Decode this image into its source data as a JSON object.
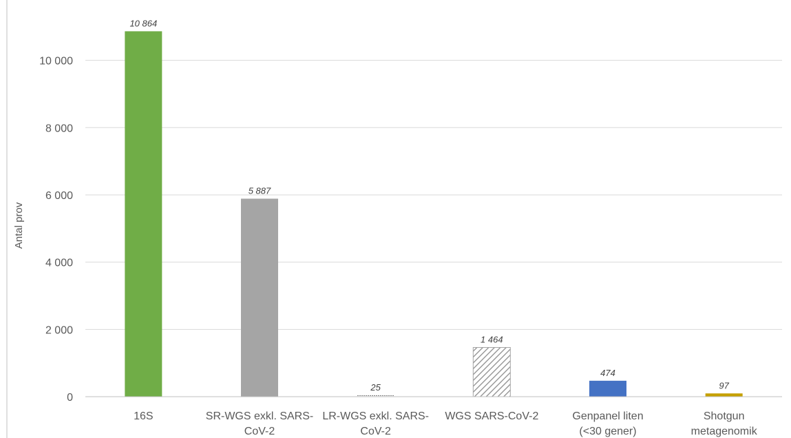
{
  "chart_data": {
    "type": "bar",
    "categories": [
      [
        "16S"
      ],
      [
        "SR-WGS exkl. SARS-",
        "CoV-2"
      ],
      [
        "LR-WGS exkl. SARS-",
        "CoV-2"
      ],
      [
        "WGS SARS-CoV-2"
      ],
      [
        "Genpanel liten",
        "(<30 gener)"
      ],
      [
        "Shotgun",
        "metagenomik"
      ]
    ],
    "values": [
      10864,
      5887,
      25,
      1464,
      474,
      97
    ],
    "data_labels": [
      "10 864",
      "5 887",
      "25",
      "1 464",
      "474",
      "97"
    ],
    "bar_colors": [
      "#70ad47",
      "#a5a5a5",
      "#7f7f7f",
      "#7f7f7f",
      "#4472c4",
      "#c5a000"
    ],
    "bar_patterns": [
      "solid",
      "solid",
      "dense-dots",
      "diagonal-hatch",
      "solid",
      "solid"
    ],
    "ylabel": "Antal prov",
    "xlabel": "",
    "ylim": [
      0,
      11200
    ],
    "yticks": [
      0,
      2000,
      4000,
      6000,
      8000,
      10000
    ],
    "ytick_labels": [
      "0",
      "2 000",
      "4 000",
      "6 000",
      "8 000",
      "10 000"
    ],
    "grid": true,
    "legend": "none"
  }
}
